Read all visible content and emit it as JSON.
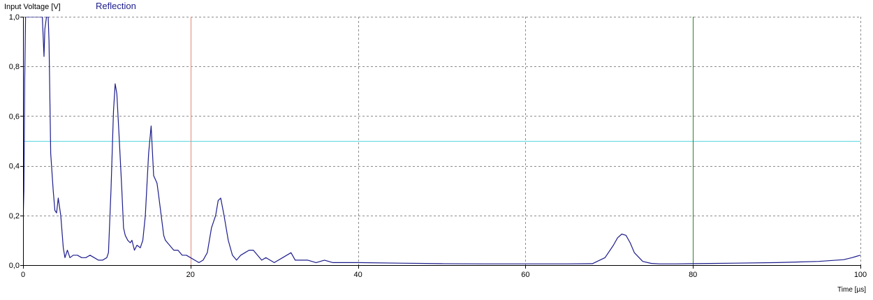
{
  "chart_data": {
    "type": "line",
    "title": "Reflection",
    "ylabel": "Input Voltage [V]",
    "xlabel": "Time [µs]",
    "xlim": [
      0,
      100
    ],
    "ylim": [
      0,
      1.0
    ],
    "x_ticks": [
      0,
      20,
      40,
      60,
      80,
      100
    ],
    "x_tick_labels": [
      "0",
      "20",
      "40",
      "60",
      "80",
      "100"
    ],
    "y_ticks": [
      0,
      0.2,
      0.4,
      0.6,
      0.8,
      1.0
    ],
    "y_tick_labels": [
      "0,0",
      "0,2",
      "0,4",
      "0,6",
      "0,8",
      "1,0"
    ],
    "grid": true,
    "colors": {
      "series": "#1c1c8c",
      "threshold": "#5cd6e0",
      "cursor_a": "#e08a7a",
      "cursor_b": "#2e7d2e",
      "grid": "#8c8c8c",
      "axis": "#000000"
    },
    "reference_lines": [
      {
        "orientation": "horizontal",
        "value": 0.5,
        "color": "#5cd6e0"
      },
      {
        "orientation": "vertical",
        "value": 20,
        "color": "#e08a7a"
      },
      {
        "orientation": "vertical",
        "value": 80,
        "color": "#2e7d2e"
      }
    ],
    "series": [
      {
        "x": [
          0,
          0.1,
          0.2,
          0.3,
          0.5,
          1.0,
          1.5,
          2.0,
          2.3,
          2.5,
          2.6,
          2.8,
          3.0,
          3.1,
          3.3,
          3.6,
          3.8,
          4.0,
          4.2,
          4.5,
          4.8,
          5.0,
          5.3,
          5.6,
          6.0,
          6.5,
          7.0,
          7.5,
          8.0,
          8.5,
          9.0,
          9.5,
          10.0,
          10.2,
          10.5,
          10.8,
          11.0,
          11.2,
          11.5,
          11.8,
          12.0,
          12.2,
          12.5,
          12.8,
          13.0,
          13.3,
          13.6,
          14.0,
          14.3,
          14.6,
          15.0,
          15.3,
          15.6,
          16.0,
          16.2,
          16.5,
          16.8,
          17.0,
          17.5,
          18.0,
          18.5,
          19.0,
          19.5,
          20.0,
          20.5,
          21.0,
          21.5,
          22.0,
          22.5,
          23.0,
          23.3,
          23.6,
          24.0,
          24.5,
          25.0,
          25.5,
          26.0,
          26.5,
          27.0,
          27.5,
          28.0,
          28.5,
          29.0,
          29.5,
          30.0,
          31.0,
          32.0,
          32.5,
          33.0,
          34.0,
          35.0,
          36.0,
          37.0,
          38.0,
          40.0,
          45.0,
          50.0,
          55.0,
          60.0,
          65.0,
          68.0,
          69.5,
          70.5,
          71.0,
          71.5,
          72.0,
          72.5,
          73.0,
          74.0,
          75.0,
          76.0,
          78.0,
          80.0,
          85.0,
          90.0,
          95.0,
          98.0,
          99.0,
          99.5,
          100.0
        ],
        "y": [
          0.17,
          0.3,
          0.75,
          1.0,
          1.0,
          1.0,
          1.0,
          1.0,
          1.0,
          0.84,
          0.95,
          1.0,
          1.0,
          0.9,
          0.45,
          0.3,
          0.22,
          0.21,
          0.27,
          0.2,
          0.07,
          0.03,
          0.06,
          0.03,
          0.04,
          0.04,
          0.03,
          0.03,
          0.04,
          0.03,
          0.02,
          0.02,
          0.03,
          0.05,
          0.3,
          0.62,
          0.73,
          0.69,
          0.5,
          0.3,
          0.15,
          0.12,
          0.1,
          0.09,
          0.1,
          0.06,
          0.08,
          0.07,
          0.1,
          0.2,
          0.45,
          0.56,
          0.36,
          0.33,
          0.28,
          0.2,
          0.12,
          0.1,
          0.08,
          0.06,
          0.06,
          0.04,
          0.04,
          0.03,
          0.02,
          0.01,
          0.02,
          0.05,
          0.15,
          0.2,
          0.26,
          0.27,
          0.2,
          0.1,
          0.04,
          0.02,
          0.04,
          0.05,
          0.06,
          0.06,
          0.04,
          0.02,
          0.03,
          0.02,
          0.01,
          0.03,
          0.05,
          0.02,
          0.02,
          0.02,
          0.01,
          0.02,
          0.01,
          0.01,
          0.01,
          0.008,
          0.006,
          0.005,
          0.005,
          0.005,
          0.006,
          0.03,
          0.08,
          0.11,
          0.125,
          0.12,
          0.09,
          0.05,
          0.015,
          0.007,
          0.005,
          0.005,
          0.006,
          0.008,
          0.01,
          0.015,
          0.022,
          0.03,
          0.035,
          0.04
        ]
      }
    ]
  }
}
